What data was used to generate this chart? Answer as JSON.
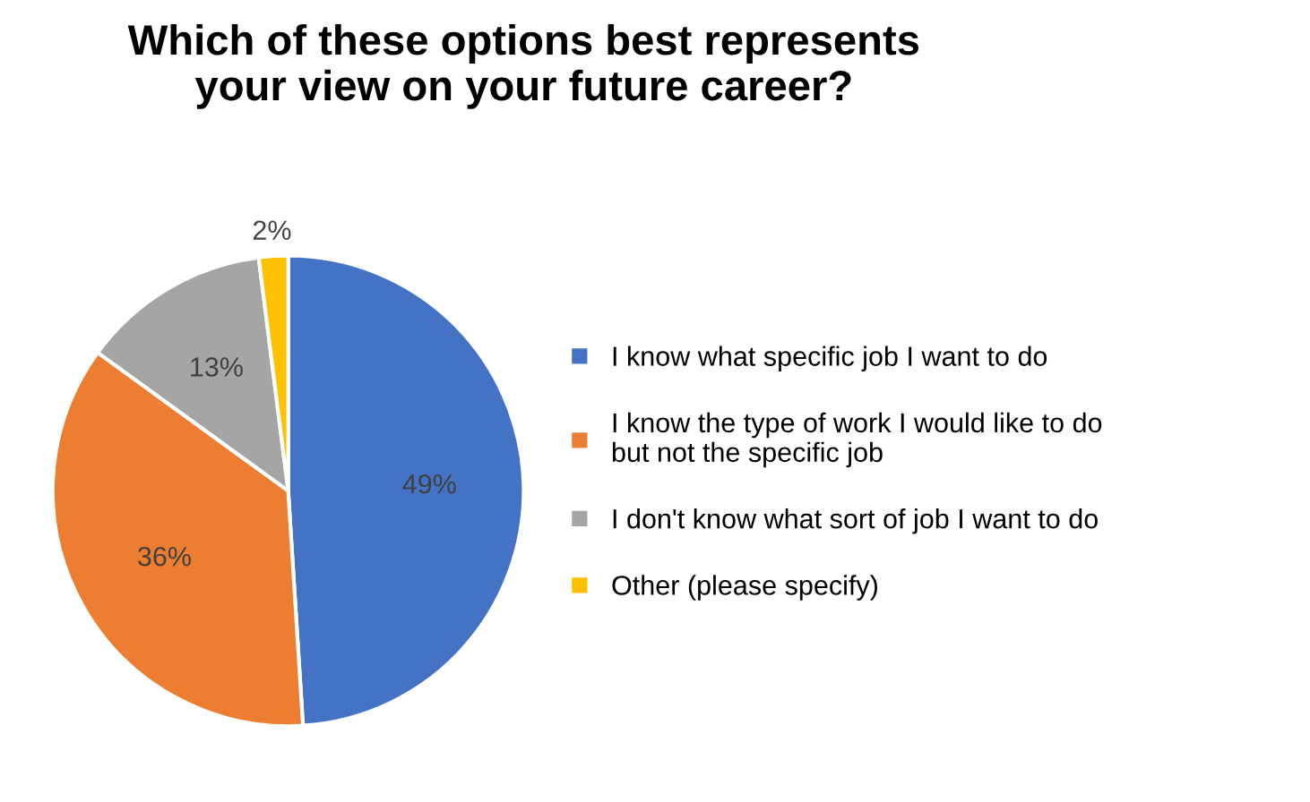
{
  "chart_data": {
    "type": "pie",
    "title": "Which of these options best represents\nyour view on your future career?",
    "categories": [
      "I know what specific job I want to do",
      "I know the type of work I would like to do\nbut not the specific job",
      "I don't know what sort of job I want to do",
      "Other (please specify)"
    ],
    "values": [
      49,
      36,
      13,
      2
    ],
    "colors": [
      "#4472c4",
      "#ed7d31",
      "#a5a5a5",
      "#ffc000"
    ],
    "value_labels": [
      "49%",
      "36%",
      "13%",
      "2%"
    ],
    "legend": "right"
  }
}
